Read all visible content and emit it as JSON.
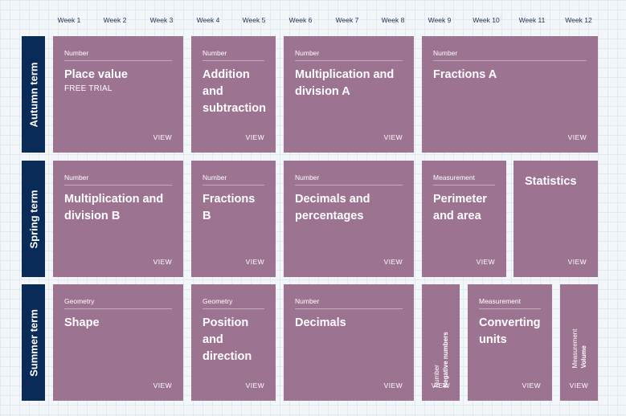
{
  "weeks": [
    "Week 1",
    "Week 2",
    "Week 3",
    "Week 4",
    "Week 5",
    "Week 6",
    "Week 7",
    "Week 8",
    "Week 9",
    "Week 10",
    "Week 11",
    "Week 12"
  ],
  "terms": {
    "autumn": "Autumn term",
    "spring": "Spring term",
    "summer": "Summer term"
  },
  "view_label": "VIEW",
  "autumn": {
    "place_value": {
      "category": "Number",
      "title": "Place value",
      "badge": "FREE TRIAL"
    },
    "addition": {
      "category": "Number",
      "title": "Addition and subtraction"
    },
    "multiplication_a": {
      "category": "Number",
      "title": "Multiplication and division A"
    },
    "fractions_a": {
      "category": "Number",
      "title": "Fractions A"
    }
  },
  "spring": {
    "multiplication_b": {
      "category": "Number",
      "title": "Multiplication and division B"
    },
    "fractions_b": {
      "category": "Number",
      "title": "Fractions B"
    },
    "decimals_percentages": {
      "category": "Number",
      "title": "Decimals and percentages"
    },
    "perimeter": {
      "category": "Measurement",
      "title": "Perimeter and area"
    },
    "statistics": {
      "title": "Statistics"
    }
  },
  "summer": {
    "shape": {
      "category": "Geometry",
      "title": "Shape"
    },
    "position": {
      "category": "Geometry",
      "title": "Position and direction"
    },
    "decimals": {
      "category": "Number",
      "title": "Decimals"
    },
    "negative": {
      "category": "Number",
      "title": "Negative numbers"
    },
    "converting": {
      "category": "Measurement",
      "title": "Converting units"
    },
    "volume": {
      "category": "Measurement",
      "title": "Volume"
    }
  },
  "colors": {
    "card": "#9c7390",
    "term": "#0a2a57",
    "background": "#f4f7fa"
  }
}
